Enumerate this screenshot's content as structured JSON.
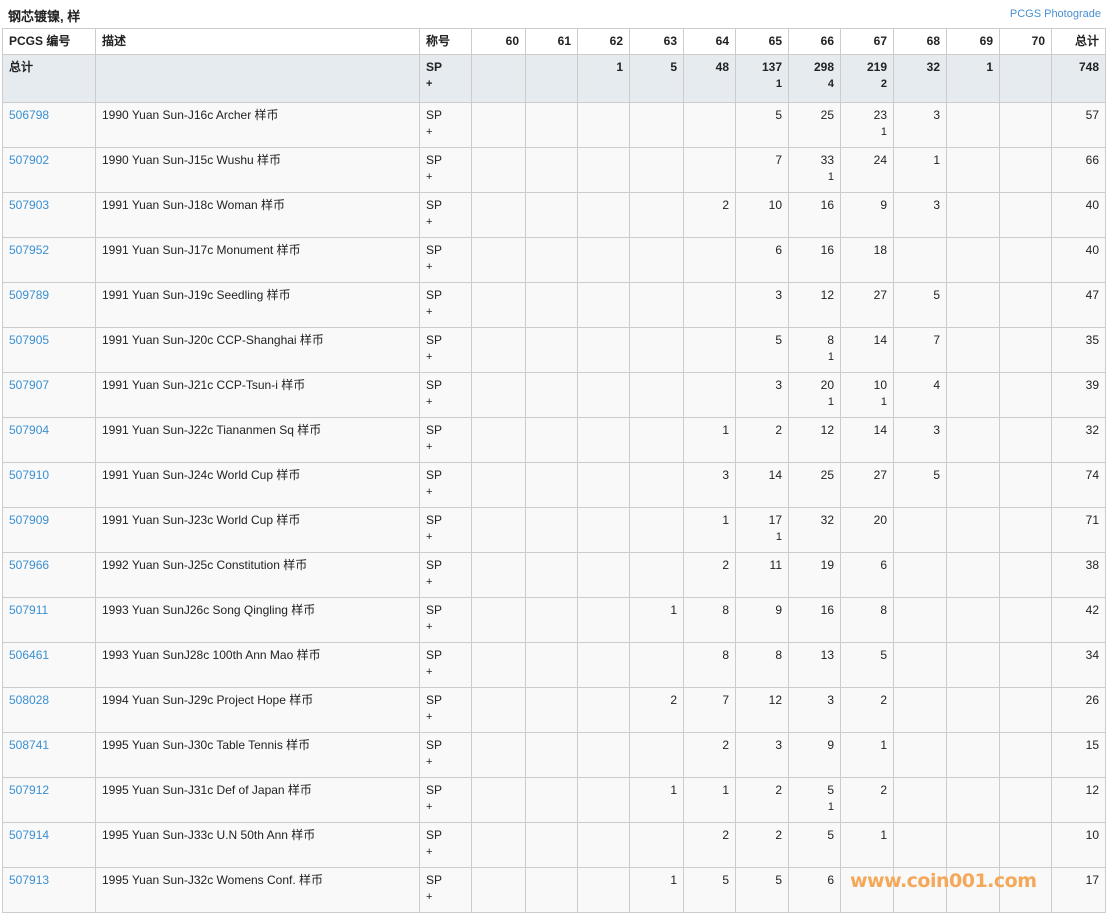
{
  "title": "钢芯镀镍, 样",
  "photograde_link": "PCGS Photograde",
  "headers": {
    "code": "PCGS 编号",
    "desc": "描述",
    "designation": "称号",
    "grades": [
      "60",
      "61",
      "62",
      "63",
      "64",
      "65",
      "66",
      "67",
      "68",
      "69",
      "70"
    ],
    "total": "总计"
  },
  "total_row": {
    "label": "总计",
    "designation": "SP",
    "designation_plus": "+",
    "grades": [
      "",
      "",
      "1",
      "5",
      "48",
      "137",
      "298",
      "219",
      "32",
      "1",
      ""
    ],
    "plus": [
      "",
      "",
      "",
      "",
      "",
      "1",
      "4",
      "2",
      "",
      "",
      ""
    ],
    "total": "748"
  },
  "rows": [
    {
      "code": "506798",
      "desc": "1990 Yuan Sun-J16c Archer 样币",
      "designation": "SP",
      "designation_plus": "+",
      "grades": [
        "",
        "",
        "",
        "",
        "",
        "5",
        "25",
        "23",
        "3",
        "",
        ""
      ],
      "plus": [
        "",
        "",
        "",
        "",
        "",
        "",
        "",
        "1",
        "",
        "",
        ""
      ],
      "total": "57"
    },
    {
      "code": "507902",
      "desc": "1990 Yuan Sun-J15c Wushu 样币",
      "designation": "SP",
      "designation_plus": "+",
      "grades": [
        "",
        "",
        "",
        "",
        "",
        "7",
        "33",
        "24",
        "1",
        "",
        ""
      ],
      "plus": [
        "",
        "",
        "",
        "",
        "",
        "",
        "1",
        "",
        "",
        "",
        ""
      ],
      "total": "66"
    },
    {
      "code": "507903",
      "desc": "1991 Yuan Sun-J18c Woman 样币",
      "designation": "SP",
      "designation_plus": "+",
      "grades": [
        "",
        "",
        "",
        "",
        "2",
        "10",
        "16",
        "9",
        "3",
        "",
        ""
      ],
      "plus": [
        "",
        "",
        "",
        "",
        "",
        "",
        "",
        "",
        "",
        "",
        ""
      ],
      "total": "40"
    },
    {
      "code": "507952",
      "desc": "1991 Yuan Sun-J17c Monument 样币",
      "designation": "SP",
      "designation_plus": "+",
      "grades": [
        "",
        "",
        "",
        "",
        "",
        "6",
        "16",
        "18",
        "",
        "",
        ""
      ],
      "plus": [
        "",
        "",
        "",
        "",
        "",
        "",
        "",
        "",
        "",
        "",
        ""
      ],
      "total": "40"
    },
    {
      "code": "509789",
      "desc": "1991 Yuan Sun-J19c Seedling 样币",
      "designation": "SP",
      "designation_plus": "+",
      "grades": [
        "",
        "",
        "",
        "",
        "",
        "3",
        "12",
        "27",
        "5",
        "",
        ""
      ],
      "plus": [
        "",
        "",
        "",
        "",
        "",
        "",
        "",
        "",
        "",
        "",
        ""
      ],
      "total": "47"
    },
    {
      "code": "507905",
      "desc": "1991 Yuan Sun-J20c CCP-Shanghai 样币",
      "designation": "SP",
      "designation_plus": "+",
      "grades": [
        "",
        "",
        "",
        "",
        "",
        "5",
        "8",
        "14",
        "7",
        "",
        ""
      ],
      "plus": [
        "",
        "",
        "",
        "",
        "",
        "",
        "1",
        "",
        "",
        "",
        ""
      ],
      "total": "35"
    },
    {
      "code": "507907",
      "desc": "1991 Yuan Sun-J21c CCP-Tsun-i 样币",
      "designation": "SP",
      "designation_plus": "+",
      "grades": [
        "",
        "",
        "",
        "",
        "",
        "3",
        "20",
        "10",
        "4",
        "",
        ""
      ],
      "plus": [
        "",
        "",
        "",
        "",
        "",
        "",
        "1",
        "1",
        "",
        "",
        ""
      ],
      "total": "39"
    },
    {
      "code": "507904",
      "desc": "1991 Yuan Sun-J22c Tiananmen Sq 样币",
      "designation": "SP",
      "designation_plus": "+",
      "grades": [
        "",
        "",
        "",
        "",
        "1",
        "2",
        "12",
        "14",
        "3",
        "",
        ""
      ],
      "plus": [
        "",
        "",
        "",
        "",
        "",
        "",
        "",
        "",
        "",
        "",
        ""
      ],
      "total": "32"
    },
    {
      "code": "507910",
      "desc": "1991 Yuan Sun-J24c World Cup 样币",
      "designation": "SP",
      "designation_plus": "+",
      "grades": [
        "",
        "",
        "",
        "",
        "3",
        "14",
        "25",
        "27",
        "5",
        "",
        ""
      ],
      "plus": [
        "",
        "",
        "",
        "",
        "",
        "",
        "",
        "",
        "",
        "",
        ""
      ],
      "total": "74"
    },
    {
      "code": "507909",
      "desc": "1991 Yuan Sun-J23c World Cup 样币",
      "designation": "SP",
      "designation_plus": "+",
      "grades": [
        "",
        "",
        "",
        "",
        "1",
        "17",
        "32",
        "20",
        "",
        "",
        ""
      ],
      "plus": [
        "",
        "",
        "",
        "",
        "",
        "1",
        "",
        "",
        "",
        "",
        ""
      ],
      "total": "71"
    },
    {
      "code": "507966",
      "desc": "1992 Yuan Sun-J25c Constitution 样币",
      "designation": "SP",
      "designation_plus": "+",
      "grades": [
        "",
        "",
        "",
        "",
        "2",
        "11",
        "19",
        "6",
        "",
        "",
        ""
      ],
      "plus": [
        "",
        "",
        "",
        "",
        "",
        "",
        "",
        "",
        "",
        "",
        ""
      ],
      "total": "38"
    },
    {
      "code": "507911",
      "desc": "1993 Yuan SunJ26c Song Qingling 样币",
      "designation": "SP",
      "designation_plus": "+",
      "grades": [
        "",
        "",
        "",
        "1",
        "8",
        "9",
        "16",
        "8",
        "",
        "",
        ""
      ],
      "plus": [
        "",
        "",
        "",
        "",
        "",
        "",
        "",
        "",
        "",
        "",
        ""
      ],
      "total": "42"
    },
    {
      "code": "506461",
      "desc": "1993 Yuan SunJ28c 100th Ann Mao 样币",
      "designation": "SP",
      "designation_plus": "+",
      "grades": [
        "",
        "",
        "",
        "",
        "8",
        "8",
        "13",
        "5",
        "",
        "",
        ""
      ],
      "plus": [
        "",
        "",
        "",
        "",
        "",
        "",
        "",
        "",
        "",
        "",
        ""
      ],
      "total": "34"
    },
    {
      "code": "508028",
      "desc": "1994 Yuan Sun-J29c Project Hope 样币",
      "designation": "SP",
      "designation_plus": "+",
      "grades": [
        "",
        "",
        "",
        "2",
        "7",
        "12",
        "3",
        "2",
        "",
        "",
        ""
      ],
      "plus": [
        "",
        "",
        "",
        "",
        "",
        "",
        "",
        "",
        "",
        "",
        ""
      ],
      "total": "26"
    },
    {
      "code": "508741",
      "desc": "1995 Yuan Sun-J30c Table Tennis 样币",
      "designation": "SP",
      "designation_plus": "+",
      "grades": [
        "",
        "",
        "",
        "",
        "2",
        "3",
        "9",
        "1",
        "",
        "",
        ""
      ],
      "plus": [
        "",
        "",
        "",
        "",
        "",
        "",
        "",
        "",
        "",
        "",
        ""
      ],
      "total": "15"
    },
    {
      "code": "507912",
      "desc": "1995 Yuan Sun-J31c Def of Japan 样币",
      "designation": "SP",
      "designation_plus": "+",
      "grades": [
        "",
        "",
        "",
        "1",
        "1",
        "2",
        "5",
        "2",
        "",
        "",
        ""
      ],
      "plus": [
        "",
        "",
        "",
        "",
        "",
        "",
        "1",
        "",
        "",
        "",
        ""
      ],
      "total": "12"
    },
    {
      "code": "507914",
      "desc": "1995 Yuan Sun-J33c U.N 50th Ann 样币",
      "designation": "SP",
      "designation_plus": "+",
      "grades": [
        "",
        "",
        "",
        "",
        "2",
        "2",
        "5",
        "1",
        "",
        "",
        ""
      ],
      "plus": [
        "",
        "",
        "",
        "",
        "",
        "",
        "",
        "",
        "",
        "",
        ""
      ],
      "total": "10"
    },
    {
      "code": "507913",
      "desc": "1995 Yuan Sun-J32c Womens Conf. 样币",
      "designation": "SP",
      "designation_plus": "+",
      "grades": [
        "",
        "",
        "",
        "1",
        "5",
        "5",
        "6",
        "",
        "",
        "",
        ""
      ],
      "plus": [
        "",
        "",
        "",
        "",
        "",
        "",
        "",
        "",
        "",
        "",
        ""
      ],
      "total": "17"
    }
  ],
  "watermark": "www.coin001.com",
  "colors": {
    "link": "#3a8fd0",
    "total_row_bg": "#e6ebf0",
    "watermark": "#f5a85a"
  }
}
